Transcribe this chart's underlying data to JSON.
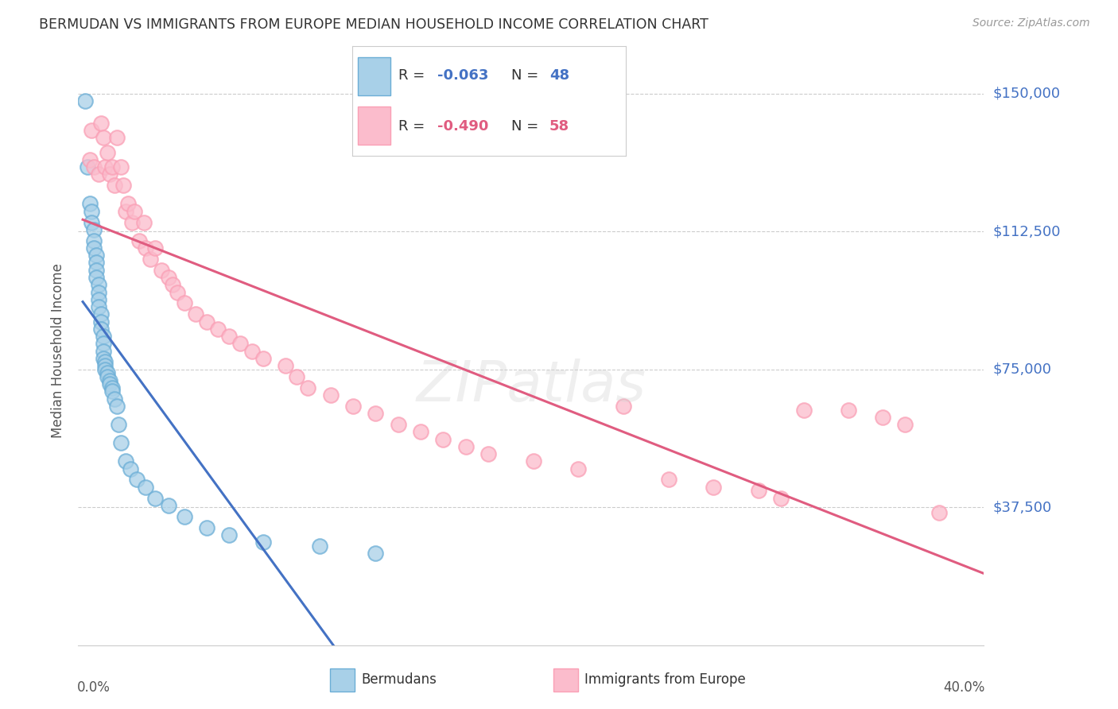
{
  "title": "BERMUDAN VS IMMIGRANTS FROM EUROPE MEDIAN HOUSEHOLD INCOME CORRELATION CHART",
  "source": "Source: ZipAtlas.com",
  "ylabel": "Median Household Income",
  "ylim": [
    0,
    160000
  ],
  "xlim": [
    -0.002,
    0.4
  ],
  "watermark": "ZIPatlas",
  "legend1_R": "-0.063",
  "legend1_N": "48",
  "legend2_R": "-0.490",
  "legend2_N": "58",
  "berm_color_face": "#a8d0e8",
  "berm_color_edge": "#6baed6",
  "berm_line_color": "#4472c4",
  "imm_color_face": "#fbbccc",
  "imm_color_edge": "#fa9fb5",
  "imm_line_color": "#e05c80",
  "dashed_line_color": "#aac8e0",
  "grid_color": "#cccccc",
  "title_color": "#333333",
  "source_color": "#999999",
  "ylabel_color": "#555555",
  "right_label_color": "#4472c4",
  "ytick_vals": [
    37500,
    75000,
    112500,
    150000
  ],
  "ytick_labels": [
    "$37,500",
    "$75,000",
    "$112,500",
    "$150,000"
  ],
  "bermudans_x": [
    0.001,
    0.002,
    0.003,
    0.004,
    0.004,
    0.005,
    0.005,
    0.005,
    0.006,
    0.006,
    0.006,
    0.006,
    0.007,
    0.007,
    0.007,
    0.007,
    0.008,
    0.008,
    0.008,
    0.009,
    0.009,
    0.009,
    0.009,
    0.01,
    0.01,
    0.01,
    0.011,
    0.011,
    0.012,
    0.012,
    0.013,
    0.013,
    0.014,
    0.015,
    0.016,
    0.017,
    0.019,
    0.021,
    0.024,
    0.028,
    0.032,
    0.038,
    0.045,
    0.055,
    0.065,
    0.08,
    0.105,
    0.13
  ],
  "bermudans_y": [
    148000,
    130000,
    120000,
    118000,
    115000,
    113000,
    110000,
    108000,
    106000,
    104000,
    102000,
    100000,
    98000,
    96000,
    94000,
    92000,
    90000,
    88000,
    86000,
    84000,
    82000,
    80000,
    78000,
    77000,
    76000,
    75000,
    74000,
    73000,
    72000,
    71000,
    70000,
    69000,
    67000,
    65000,
    60000,
    55000,
    50000,
    48000,
    45000,
    43000,
    40000,
    38000,
    35000,
    32000,
    30000,
    28000,
    27000,
    25000
  ],
  "immigrants_x": [
    0.003,
    0.004,
    0.005,
    0.007,
    0.008,
    0.009,
    0.01,
    0.011,
    0.012,
    0.013,
    0.014,
    0.015,
    0.017,
    0.018,
    0.019,
    0.02,
    0.022,
    0.023,
    0.025,
    0.027,
    0.028,
    0.03,
    0.032,
    0.035,
    0.038,
    0.04,
    0.042,
    0.045,
    0.05,
    0.055,
    0.06,
    0.065,
    0.07,
    0.075,
    0.08,
    0.09,
    0.095,
    0.1,
    0.11,
    0.12,
    0.13,
    0.14,
    0.15,
    0.16,
    0.17,
    0.18,
    0.2,
    0.22,
    0.24,
    0.26,
    0.28,
    0.3,
    0.31,
    0.32,
    0.34,
    0.355,
    0.365,
    0.38
  ],
  "immigrants_y": [
    132000,
    140000,
    130000,
    128000,
    142000,
    138000,
    130000,
    134000,
    128000,
    130000,
    125000,
    138000,
    130000,
    125000,
    118000,
    120000,
    115000,
    118000,
    110000,
    115000,
    108000,
    105000,
    108000,
    102000,
    100000,
    98000,
    96000,
    93000,
    90000,
    88000,
    86000,
    84000,
    82000,
    80000,
    78000,
    76000,
    73000,
    70000,
    68000,
    65000,
    63000,
    60000,
    58000,
    56000,
    54000,
    52000,
    50000,
    48000,
    65000,
    45000,
    43000,
    42000,
    40000,
    64000,
    64000,
    62000,
    60000,
    36000
  ]
}
